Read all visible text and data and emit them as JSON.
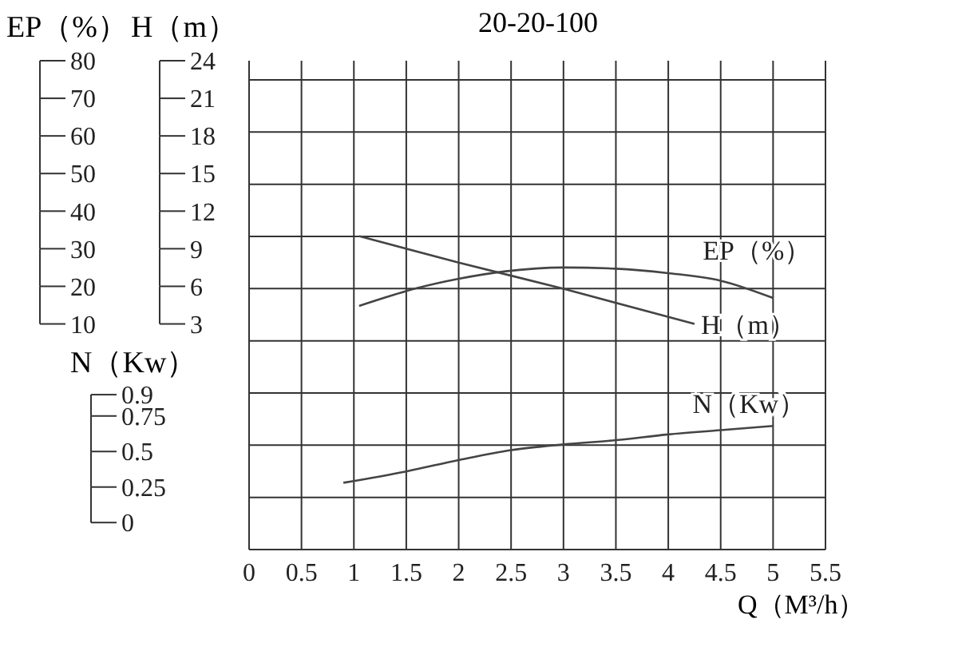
{
  "chart_data": {
    "type": "line",
    "title": "20-20-100",
    "xlabel": "Q（M³/h）",
    "ylabel": "EP（%）",
    "y2label": "H（m）",
    "y3label": "N（Kw）",
    "xlim": [
      0,
      5.5
    ],
    "xticks": [
      0,
      0.5,
      1,
      1.5,
      2,
      2.5,
      3,
      3.5,
      4,
      4.5,
      5,
      5.5
    ],
    "ylim": [
      -50,
      80
    ],
    "yticks": [
      10,
      20,
      30,
      40,
      50,
      60,
      70,
      80
    ],
    "y2lim": [
      -15,
      24
    ],
    "y2ticks": [
      3,
      6,
      9,
      12,
      15,
      18,
      21,
      24
    ],
    "y3lim": [
      -0.19,
      3.25
    ],
    "y3ticks": [
      0,
      0.25,
      0.5,
      0.75,
      0.9
    ],
    "grid": true,
    "legend": false,
    "marker": "none",
    "line_style": "solid",
    "series": [
      {
        "name": "EP（%）",
        "color": "#444444",
        "x": [
          1.05,
          1.6,
          2,
          2.45,
          3,
          3.5,
          4,
          4.5,
          5
        ],
        "values": [
          14.8,
          19.5,
          22,
          24,
          25,
          24.7,
          23.5,
          21.5,
          16.9
        ]
      },
      {
        "name": "H（m）",
        "color": "#444444",
        "axis": "y2",
        "x": [
          1.05,
          2,
          3,
          4.25
        ],
        "values": [
          10,
          7.9,
          5.8,
          3
        ]
      },
      {
        "name": "N（Kw）",
        "color": "#444444",
        "axis": "y3",
        "x": [
          0.9,
          1.5,
          2,
          2.5,
          3,
          3.5,
          4,
          4.5,
          5
        ],
        "values": [
          0.28,
          0.36,
          0.44,
          0.51,
          0.55,
          0.58,
          0.62,
          0.65,
          0.68
        ]
      }
    ]
  }
}
